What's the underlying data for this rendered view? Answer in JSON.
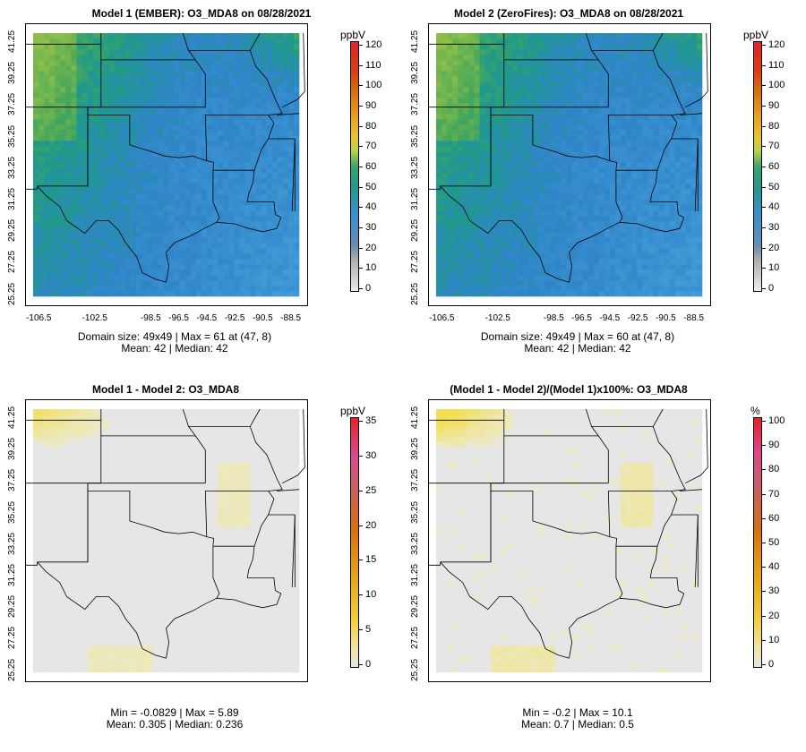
{
  "panels": [
    {
      "id": "p1",
      "title": "Model 1 (EMBER): O3_MDA8 on 08/28/2021",
      "stats_line1": "Domain size: 49x49 | Max = 61 at (47, 8)",
      "stats_line2": "Mean: 42 |  Median: 42",
      "unit": "ppbV",
      "scale": [
        0,
        10,
        20,
        30,
        40,
        50,
        60,
        70,
        80,
        90,
        100,
        110,
        120
      ],
      "field": "ozone"
    },
    {
      "id": "p2",
      "title": "Model 2 (ZeroFires): O3_MDA8 on 08/28/2021",
      "stats_line1": "Domain size: 49x49 | Max = 60 at (47, 8)",
      "stats_line2": "Mean: 42 |  Median: 42",
      "unit": "ppbV",
      "scale": [
        0,
        10,
        20,
        30,
        40,
        50,
        60,
        70,
        80,
        90,
        100,
        110,
        120
      ],
      "field": "ozone"
    },
    {
      "id": "p3",
      "title": "Model 1 - Model 2: O3_MDA8",
      "stats_line1": "Min = -0.0829 | Max = 5.89",
      "stats_line2": "Mean: 0.305 |  Median: 0.236",
      "unit": "ppbV",
      "scale": [
        0,
        5,
        10,
        15,
        20,
        25,
        30,
        35
      ],
      "field": "diff"
    },
    {
      "id": "p4",
      "title": "(Model 1 - Model 2)/(Model 1)x100%: O3_MDA8",
      "stats_line1": "Min = -0.2 | Max = 10.1",
      "stats_line2": "Mean: 0.7 |  Median: 0.5",
      "unit": "%",
      "scale": [
        0,
        10,
        20,
        30,
        40,
        50,
        60,
        70,
        80,
        90,
        100
      ],
      "field": "pct"
    }
  ],
  "lat_ticks": [
    "25.25",
    "27.25",
    "29.25",
    "31.25",
    "33.25",
    "35.25",
    "37.25",
    "39.25",
    "41.25"
  ],
  "lon_ticks": [
    "-106.5",
    "-102.5",
    "-98.5",
    "-96.5",
    "-94.5",
    "-92.5",
    "-90.5",
    "-88.5"
  ],
  "colors": {
    "ozone_low": "#3a8fd0",
    "ozone_mid": "#1f9a8a",
    "ozone_high": "#5cae4a",
    "diff_bg": "#e6e6e6",
    "diff_tint": "#f5e58a"
  }
}
